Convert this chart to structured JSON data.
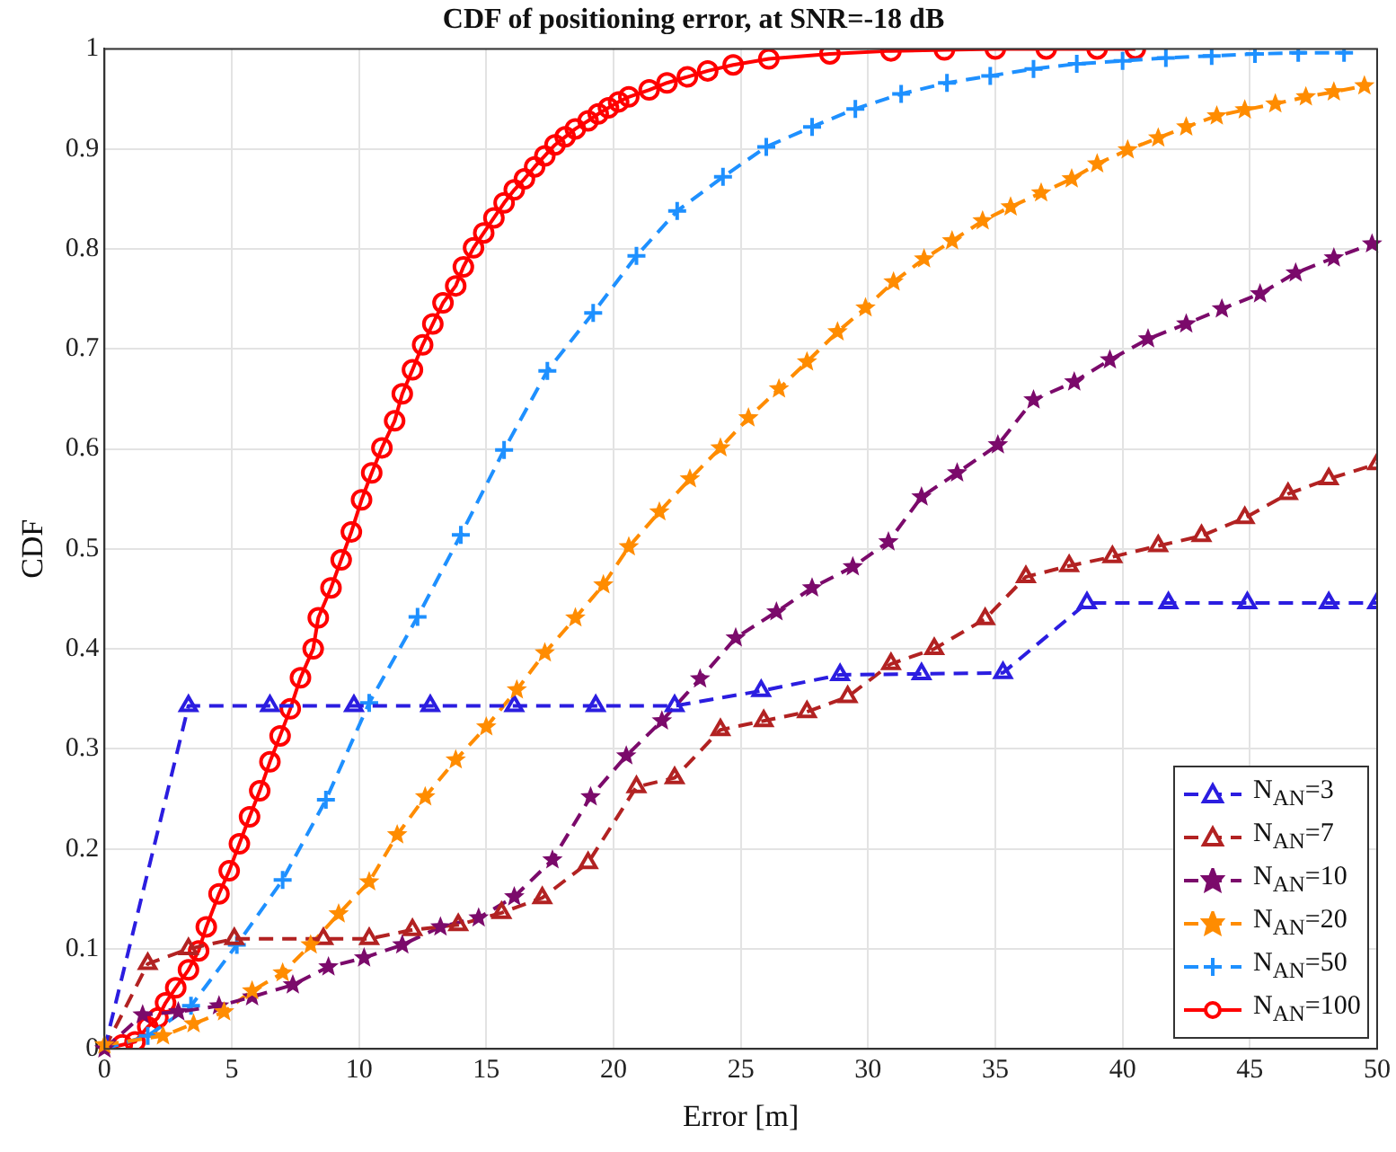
{
  "chart_data": {
    "type": "line",
    "title": "CDF of positioning error, at SNR=-18 dB",
    "xlabel": "Error [m]",
    "ylabel": "CDF",
    "xlim": [
      0,
      50
    ],
    "xticks": [
      0,
      5,
      10,
      15,
      20,
      25,
      30,
      35,
      40,
      45,
      50
    ],
    "ylim": [
      0,
      1
    ],
    "yticks": [
      0,
      0.1,
      0.2,
      0.3,
      0.4,
      0.5,
      0.6,
      0.7,
      0.8,
      0.9,
      1
    ],
    "grid": true,
    "legend": "bottom right",
    "series": [
      {
        "name": "N$_{AN}$=3",
        "color": "#2b1de0",
        "marker": "triangle",
        "line_style": "dashed",
        "x": [
          0,
          3.3,
          6.5,
          9.8,
          12.8,
          16.1,
          19.3,
          22.4,
          25.8,
          28.9,
          32.1,
          35.3,
          38.6,
          41.8,
          44.9,
          48.1,
          50
        ],
        "values": [
          0,
          0.343,
          0.343,
          0.343,
          0.343,
          0.343,
          0.343,
          0.343,
          0.358,
          0.374,
          0.375,
          0.376,
          0.446,
          0.446,
          0.446,
          0.446,
          0.446
        ]
      },
      {
        "name": "N$_{AN}$=7",
        "color": "#b22222",
        "marker": "triangle",
        "line_style": "dashed",
        "x": [
          0,
          1.7,
          3.3,
          5.1,
          8.6,
          10.4,
          12.1,
          13.9,
          15.6,
          17.2,
          19.0,
          20.9,
          22.4,
          24.2,
          25.9,
          27.6,
          29.2,
          30.9,
          32.6,
          34.6,
          36.2,
          37.9,
          39.6,
          41.4,
          43.1,
          44.8,
          46.5,
          48.1,
          50
        ],
        "values": [
          0,
          0.085,
          0.1,
          0.11,
          0.11,
          0.11,
          0.119,
          0.124,
          0.136,
          0.151,
          0.186,
          0.262,
          0.271,
          0.319,
          0.328,
          0.337,
          0.352,
          0.385,
          0.4,
          0.43,
          0.472,
          0.483,
          0.492,
          0.503,
          0.513,
          0.531,
          0.555,
          0.57,
          0.585
        ]
      },
      {
        "name": "N$_{AN}$=10",
        "color": "#7b0a6b",
        "marker": "star",
        "line_style": "dashed",
        "x": [
          0,
          1.5,
          2.9,
          4.5,
          5.8,
          7.4,
          8.8,
          10.2,
          11.7,
          13.2,
          14.7,
          16.1,
          17.6,
          19.1,
          20.5,
          21.9,
          23.4,
          24.8,
          26.4,
          27.8,
          29.4,
          30.8,
          32.1,
          33.5,
          35.1,
          36.5,
          38.1,
          39.5,
          41.0,
          42.5,
          43.9,
          45.4,
          46.8,
          48.3,
          49.8
        ],
        "values": [
          0,
          0.034,
          0.037,
          0.043,
          0.052,
          0.064,
          0.082,
          0.091,
          0.104,
          0.122,
          0.131,
          0.152,
          0.189,
          0.252,
          0.293,
          0.328,
          0.37,
          0.411,
          0.437,
          0.461,
          0.482,
          0.507,
          0.552,
          0.576,
          0.604,
          0.649,
          0.667,
          0.689,
          0.71,
          0.725,
          0.74,
          0.755,
          0.776,
          0.791,
          0.805
        ]
      },
      {
        "name": "N$_{AN}$=20",
        "color": "#ff8c00",
        "marker": "star",
        "line_style": "dashed",
        "x": [
          0,
          2.3,
          3.5,
          4.7,
          5.8,
          7.0,
          8.1,
          9.2,
          10.4,
          11.5,
          12.6,
          13.8,
          15.0,
          16.2,
          17.3,
          18.5,
          19.6,
          20.6,
          21.8,
          23.0,
          24.2,
          25.3,
          26.5,
          27.6,
          28.8,
          29.9,
          31.0,
          32.2,
          33.3,
          34.5,
          35.6,
          36.8,
          38.0,
          39.0,
          40.2,
          41.4,
          42.5,
          43.7,
          44.8,
          46.0,
          47.2,
          48.3,
          49.5
        ],
        "values": [
          0.004,
          0.013,
          0.025,
          0.037,
          0.058,
          0.076,
          0.104,
          0.135,
          0.167,
          0.214,
          0.252,
          0.289,
          0.322,
          0.359,
          0.396,
          0.431,
          0.464,
          0.502,
          0.537,
          0.57,
          0.601,
          0.631,
          0.66,
          0.687,
          0.717,
          0.741,
          0.767,
          0.79,
          0.808,
          0.828,
          0.842,
          0.856,
          0.87,
          0.885,
          0.899,
          0.911,
          0.922,
          0.933,
          0.939,
          0.945,
          0.952,
          0.957,
          0.963
        ]
      },
      {
        "name": "N$_{AN}$=50",
        "color": "#1e90ff",
        "marker": "cross",
        "line_style": "dashed",
        "x": [
          0,
          1.7,
          3.4,
          5.2,
          7.0,
          8.7,
          10.4,
          12.3,
          14.0,
          15.7,
          17.4,
          19.2,
          20.9,
          22.5,
          24.3,
          26.0,
          27.8,
          29.5,
          31.3,
          33.1,
          34.8,
          36.5,
          38.2,
          40.0,
          41.7,
          43.5,
          45.2,
          46.9,
          48.7
        ],
        "values": [
          0,
          0.013,
          0.043,
          0.104,
          0.169,
          0.249,
          0.346,
          0.432,
          0.514,
          0.599,
          0.678,
          0.736,
          0.793,
          0.838,
          0.872,
          0.902,
          0.922,
          0.94,
          0.955,
          0.966,
          0.973,
          0.98,
          0.985,
          0.988,
          0.991,
          0.993,
          0.995,
          0.996,
          0.996
        ]
      },
      {
        "name": "N$_{AN}$=100",
        "color": "#ff0000",
        "marker": "circle",
        "line_style": "solid",
        "x": [
          0,
          0.7,
          1.2,
          1.7,
          2.1,
          2.4,
          2.8,
          3.3,
          3.7,
          4.0,
          4.5,
          4.9,
          5.3,
          5.7,
          6.1,
          6.5,
          6.9,
          7.3,
          7.7,
          8.2,
          8.4,
          8.9,
          9.3,
          9.7,
          10.1,
          10.5,
          10.9,
          11.4,
          11.7,
          12.1,
          12.5,
          12.9,
          13.3,
          13.8,
          14.1,
          14.5,
          14.9,
          15.3,
          15.7,
          16.1,
          16.5,
          16.9,
          17.3,
          17.7,
          18.1,
          18.5,
          19.0,
          19.4,
          19.8,
          20.2,
          20.6,
          21.4,
          22.1,
          22.9,
          23.7,
          24.7,
          26.1,
          28.5,
          30.9,
          33.0,
          35.0,
          37.0,
          39.0,
          40.5
        ],
        "values": [
          0,
          0.004,
          0.007,
          0.022,
          0.031,
          0.046,
          0.061,
          0.079,
          0.098,
          0.122,
          0.155,
          0.178,
          0.205,
          0.232,
          0.258,
          0.287,
          0.313,
          0.34,
          0.371,
          0.4,
          0.431,
          0.461,
          0.489,
          0.517,
          0.549,
          0.576,
          0.601,
          0.628,
          0.655,
          0.679,
          0.704,
          0.725,
          0.746,
          0.763,
          0.782,
          0.801,
          0.816,
          0.831,
          0.846,
          0.859,
          0.87,
          0.882,
          0.893,
          0.904,
          0.912,
          0.92,
          0.928,
          0.935,
          0.941,
          0.947,
          0.952,
          0.959,
          0.966,
          0.972,
          0.978,
          0.984,
          0.99,
          0.995,
          0.998,
          0.999,
          1,
          1,
          1,
          1
        ]
      }
    ]
  }
}
